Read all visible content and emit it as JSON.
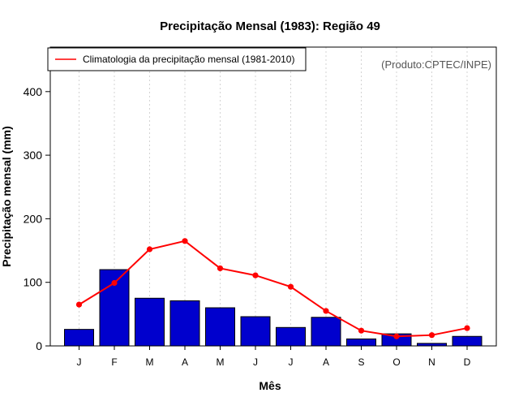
{
  "chart_data": {
    "type": "bar",
    "title": "Precipitação Mensal (1983): Região 49",
    "xlabel": "Mês",
    "ylabel": "Precipitação mensal (mm)",
    "ylim": [
      0,
      470
    ],
    "yticks": [
      0,
      100,
      200,
      300,
      400
    ],
    "categories": [
      "J",
      "F",
      "M",
      "A",
      "M",
      "J",
      "J",
      "A",
      "S",
      "O",
      "N",
      "D"
    ],
    "series": [
      {
        "name": "Precipitação mensal 1983",
        "kind": "bar",
        "color": "#0000cd",
        "values": [
          26,
          120,
          75,
          71,
          60,
          46,
          29,
          45,
          11,
          19,
          4,
          15
        ]
      },
      {
        "name": "Climatologia da precipitação mensal (1981-2010)",
        "kind": "line",
        "color": "#ff0000",
        "values": [
          65,
          99,
          152,
          165,
          122,
          111,
          93,
          55,
          24,
          15,
          17,
          28
        ]
      }
    ],
    "legend": {
      "position": "top-left",
      "entries": [
        "Climatologia da precipitação mensal (1981-2010)"
      ]
    },
    "annotation": "(Produto:CPTEC/INPE)",
    "grid": "vertical dotted"
  }
}
